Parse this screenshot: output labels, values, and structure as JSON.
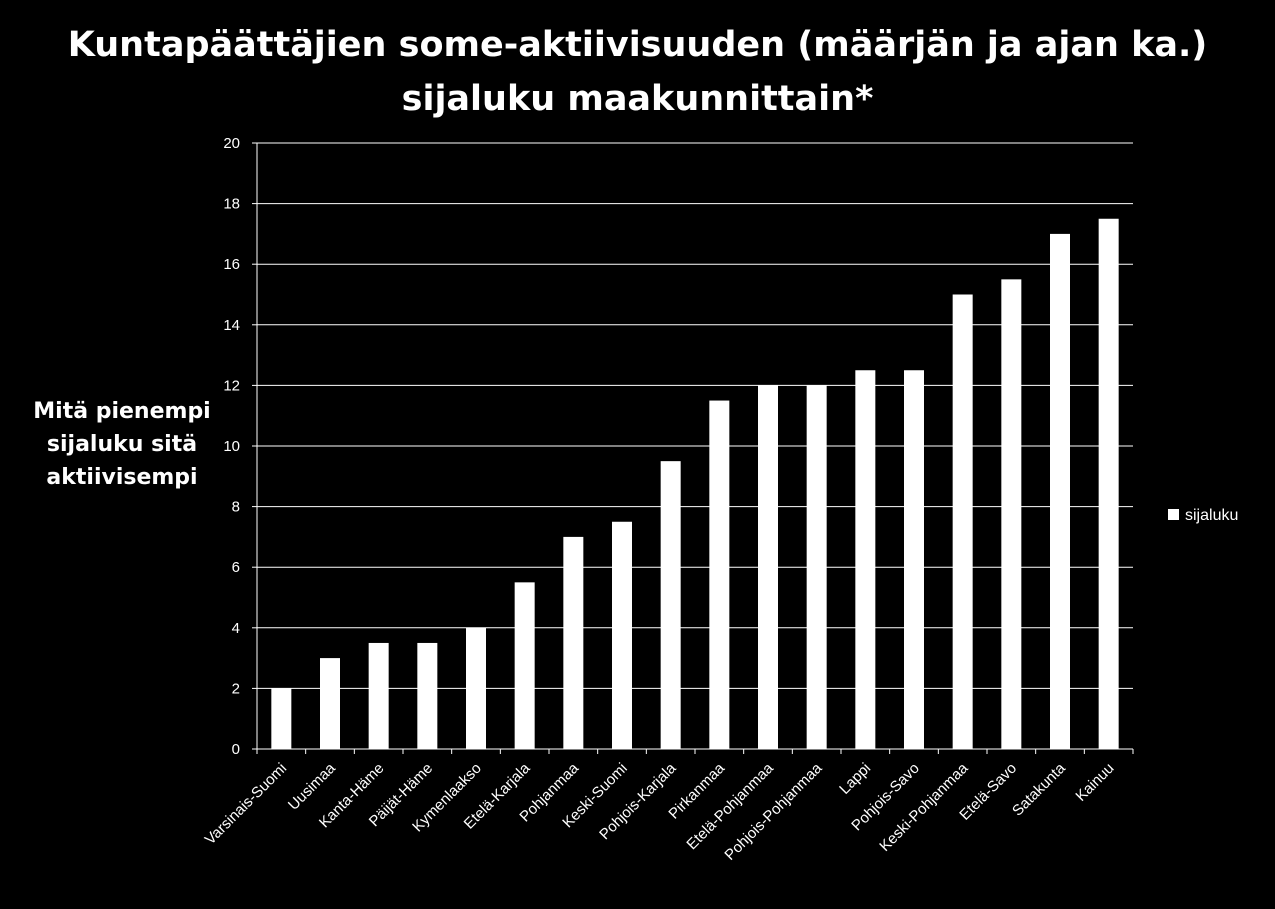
{
  "chart_data": {
    "type": "bar",
    "title_lines": [
      "Kuntapäättäjien some-aktiivisuuden (määrjän ja ajan ka.)",
      "sijaluku maakunnittain*"
    ],
    "xlabel": "",
    "ylabel_lines": [
      "Mitä pienempi",
      "sijaluku sitä",
      "aktiivisempi"
    ],
    "ylim": [
      0,
      20
    ],
    "yticks": [
      0,
      2,
      4,
      6,
      8,
      10,
      12,
      14,
      16,
      18,
      20
    ],
    "grid": true,
    "legend_position": "right",
    "categories": [
      "Varsinais-Suomi",
      "Uusimaa",
      "Kanta-Häme",
      "Päijät-Häme",
      "Kymenlaakso",
      "Etelä-Karjala",
      "Pohjanmaa",
      "Keski-Suomi",
      "Pohjois-Karjala",
      "Pirkanmaa",
      "Etelä-Pohjanmaa",
      "Pohjois-Pohjanmaa",
      "Lappi",
      "Pohjois-Savo",
      "Keski-Pohjanmaa",
      "Etelä-Savo",
      "Satakunta",
      "Kainuu"
    ],
    "series": [
      {
        "name": "sijaluku",
        "color": "#ffffff",
        "values": [
          2,
          3,
          3.5,
          3.5,
          4,
          5.5,
          7,
          7.5,
          9.5,
          11.5,
          12,
          12,
          12.5,
          12.5,
          15,
          15.5,
          17,
          17.5
        ]
      }
    ]
  },
  "colors": {
    "background": "#000000",
    "text": "#ffffff",
    "gridline": "#ffffff",
    "bar": "#ffffff"
  }
}
